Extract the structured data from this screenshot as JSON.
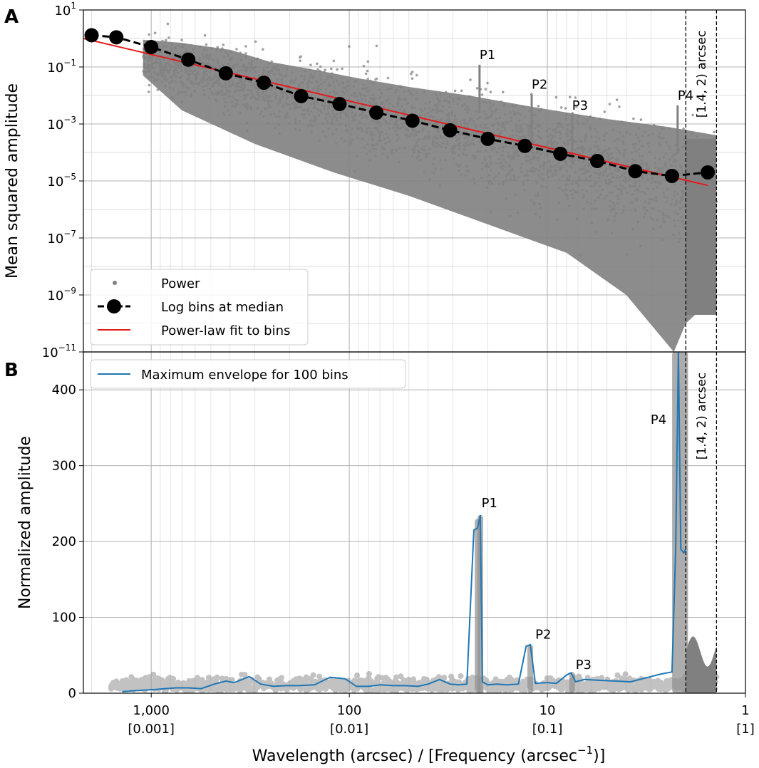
{
  "figure": {
    "xlabel": "Wavelength (arcsec) / [Frequency (arcsec",
    "xlabel_sup": "−1",
    "xlabel_end": ")]",
    "x_ticks": [
      {
        "value": 1000,
        "label": "1,000",
        "sublabel": "[0.001]"
      },
      {
        "value": 100,
        "label": "100",
        "sublabel": "[0.01]"
      },
      {
        "value": 10,
        "label": "10",
        "sublabel": "[0.1]"
      },
      {
        "value": 1,
        "label": "1",
        "sublabel": "[1]"
      }
    ],
    "xlim": [
      2200,
      1
    ],
    "xscale": "log",
    "x_inverted": true,
    "cutoff_label": "[1.4, 2) arcsec",
    "cutoff_lines": [
      2,
      1.4
    ]
  },
  "chart_data": [
    {
      "panel": "A",
      "type": "scatter",
      "ylabel": "Mean squared amplitude",
      "yscale": "log",
      "ylim": [
        1e-11,
        10
      ],
      "y_ticks": [
        {
          "base": "10",
          "exp": "1"
        },
        {
          "base": "10",
          "exp": "−1"
        },
        {
          "base": "10",
          "exp": "−3"
        },
        {
          "base": "10",
          "exp": "−5"
        },
        {
          "base": "10",
          "exp": "−7"
        },
        {
          "base": "10",
          "exp": "−9"
        },
        {
          "base": "10",
          "exp": "−11"
        }
      ],
      "y_tick_values": [
        10,
        0.1,
        0.001,
        1e-05,
        1e-07,
        1e-09,
        1e-11
      ],
      "legend": {
        "position": "lower-left",
        "entries": [
          "Power",
          "Log bins at median",
          "Power-law fit to bins"
        ]
      },
      "series": [
        {
          "name": "Log bins at median",
          "style": "black dashed line with circle markers",
          "x": [
            2000,
            1500,
            1000,
            650,
            420,
            270,
            175,
            112,
            73,
            48,
            31,
            20,
            13,
            8.6,
            5.6,
            3.6,
            2.35,
            1.55
          ],
          "y": [
            1.3,
            1.1,
            0.5,
            0.18,
            0.06,
            0.028,
            0.0095,
            0.005,
            0.0025,
            0.0013,
            0.0006,
            0.0003,
            0.00017,
            9e-05,
            5e-05,
            2.2e-05,
            1.5e-05,
            2e-05
          ]
        },
        {
          "name": "Power-law fit to bins",
          "style": "red line",
          "x": [
            2200,
            1.55
          ],
          "y": [
            1.0,
            7e-06
          ]
        }
      ],
      "peaks": [
        {
          "label": "P1",
          "x": 22,
          "y": 0.12
        },
        {
          "label": "P2",
          "x": 12,
          "y": 0.011
        },
        {
          "label": "P3",
          "x": 7.5,
          "y": 0.002
        },
        {
          "label": "P4",
          "x": 2.2,
          "y": 0.0045
        }
      ],
      "panel_label": "A"
    },
    {
      "panel": "B",
      "type": "line",
      "ylabel": "Normalized amplitude",
      "yscale": "linear",
      "ylim": [
        0,
        450
      ],
      "y_ticks": [
        0,
        100,
        200,
        300,
        400
      ],
      "legend": {
        "position": "top-left",
        "entries": [
          "Maximum envelope for 100 bins"
        ]
      },
      "series": [
        {
          "name": "Maximum envelope for 100 bins",
          "color": "#1f77b4",
          "x": [
            1400,
            1250,
            1100,
            950,
            850,
            750,
            650,
            560,
            480,
            420,
            380,
            320,
            280,
            240,
            210,
            180,
            150,
            125,
            105,
            92,
            80,
            70,
            60,
            52,
            45,
            40,
            35,
            31,
            28,
            25.5,
            23.5,
            22.5,
            21.8,
            21.3,
            20,
            18,
            16,
            14,
            12.8,
            12.2,
            11.5,
            10,
            9,
            8,
            7.6,
            7.2,
            6.5,
            5.5,
            4.5,
            3.8,
            3.2,
            2.7,
            2.35,
            2.25,
            2.18,
            2.12,
            2.05,
            2.0
          ],
          "y": [
            2,
            3,
            4,
            5,
            6,
            7,
            7,
            6,
            12,
            16,
            14,
            22,
            12,
            9,
            10,
            10,
            11,
            21,
            19,
            9,
            9,
            11,
            10,
            10,
            9,
            12,
            18,
            12,
            11,
            12,
            215,
            218,
            235,
            15,
            11,
            12,
            11,
            12,
            62,
            64,
            13,
            14,
            13,
            24,
            27,
            15,
            18,
            17,
            16,
            15,
            20,
            25,
            28,
            190,
            450,
            190,
            185,
            190
          ]
        }
      ],
      "peaks": [
        {
          "label": "P1",
          "x": 21.5,
          "y": 245
        },
        {
          "label": "P2",
          "x": 11.5,
          "y": 72
        },
        {
          "label": "P3",
          "x": 7.2,
          "y": 32
        },
        {
          "label": "P4",
          "x": 2.35,
          "y": 355
        }
      ],
      "panel_label": "B"
    }
  ]
}
